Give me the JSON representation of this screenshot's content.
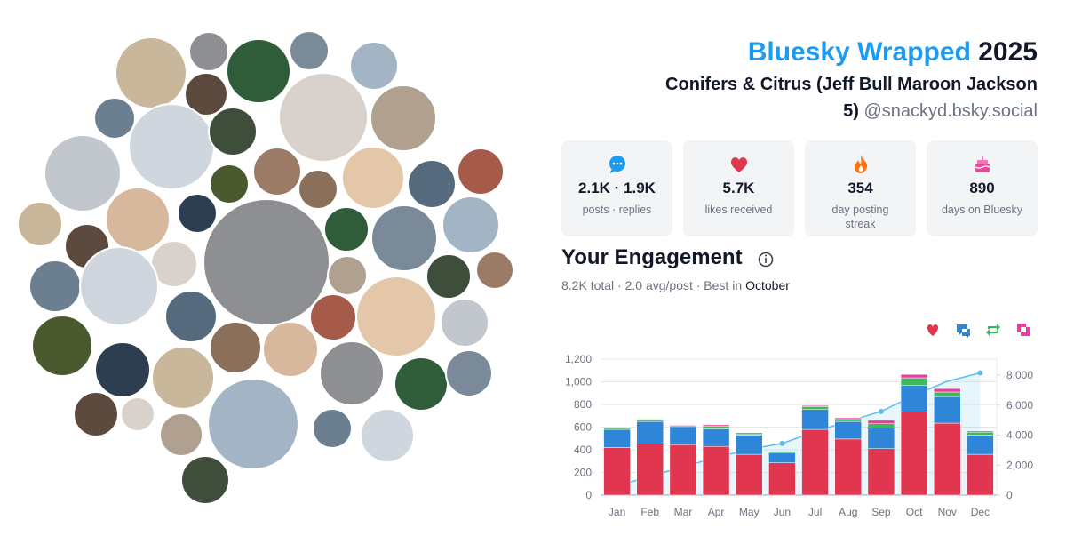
{
  "header": {
    "title_brand": "Bluesky Wrapped",
    "title_year": "2025",
    "display_name": "Conifers & Citrus (Jeff Bull Maroon Jackson 5)",
    "handle": "@snackyd.bsky.social"
  },
  "stats": [
    {
      "value": "2.1K · 1.9K",
      "label": "posts · replies"
    },
    {
      "value": "5.7K",
      "label": "likes received"
    },
    {
      "value": "354",
      "label": "day posting streak"
    },
    {
      "value": "890",
      "label": "days on Bluesky"
    }
  ],
  "engagement": {
    "title": "Your Engagement",
    "summary": "8.2K total · 2.0 avg/post · Best in",
    "best_month": "October"
  },
  "chart_data": {
    "type": "bar",
    "stacked": true,
    "categories": [
      "Jan",
      "Feb",
      "Mar",
      "Apr",
      "May",
      "Jun",
      "Jul",
      "Aug",
      "Sep",
      "Oct",
      "Nov",
      "Dec"
    ],
    "series": [
      {
        "color": "#e0364f",
        "values": [
          420,
          450,
          445,
          430,
          360,
          285,
          580,
          495,
          410,
          735,
          635,
          360
        ]
      },
      {
        "color": "#2f86d9",
        "values": [
          160,
          200,
          160,
          155,
          170,
          90,
          175,
          155,
          180,
          235,
          235,
          170
        ]
      },
      {
        "color": "#3cb95c",
        "values": [
          10,
          15,
          10,
          25,
          10,
          10,
          25,
          25,
          40,
          65,
          40,
          25
        ]
      },
      {
        "color": "#e63fa0",
        "values": [
          5,
          5,
          5,
          10,
          10,
          5,
          10,
          10,
          30,
          30,
          30,
          10
        ]
      },
      {
        "type": "line",
        "axis": "y2",
        "color": "#5bbfea",
        "values": [
          595,
          1265,
          1885,
          2505,
          3055,
          3445,
          4235,
          4920,
          5580,
          6645,
          7585,
          8150
        ]
      }
    ],
    "ylim": [
      0,
      1200
    ],
    "yticks": [
      0,
      200,
      400,
      600,
      800,
      {
        "value": 1000,
        "label": "1,000"
      },
      {
        "value": 1200,
        "label": "1,200"
      }
    ],
    "y2lim": [
      0,
      9067
    ],
    "y2ticks": [
      0,
      {
        "value": 2000,
        "label": "2,000"
      },
      {
        "value": 4000,
        "label": "4,000"
      },
      {
        "value": 6000,
        "label": "6,000"
      },
      {
        "value": 8000,
        "label": "8,000"
      }
    ],
    "grid": true
  }
}
